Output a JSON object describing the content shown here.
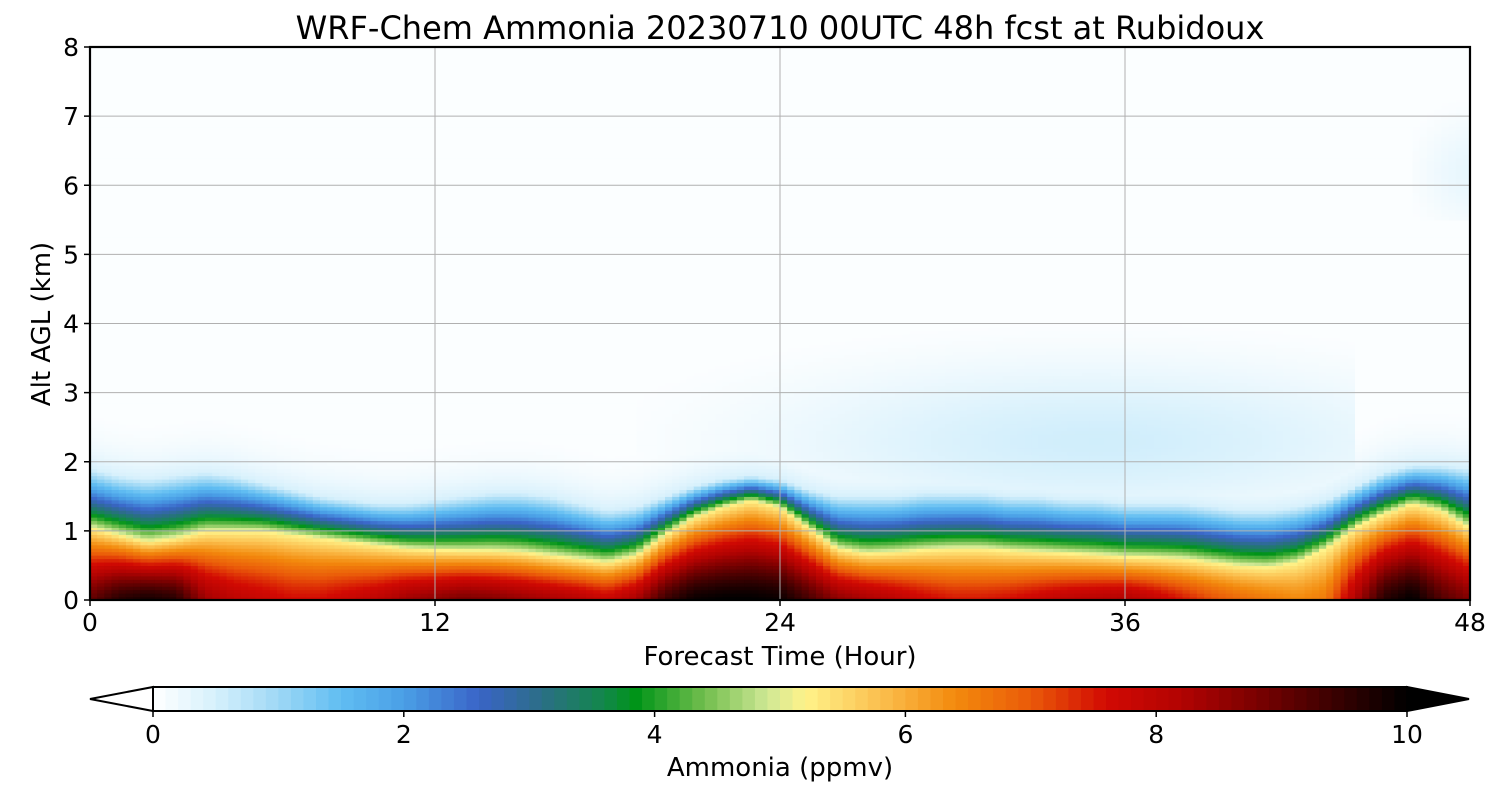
{
  "chart_data": {
    "type": "heatmap",
    "title": "WRF-Chem Ammonia  20230710 00UTC 48h fcst at Rubidoux",
    "xlabel": "Forecast Time (Hour)",
    "ylabel": "Alt AGL (km)",
    "xlim": [
      0,
      48
    ],
    "ylim": [
      0,
      8
    ],
    "x_ticks": [
      0,
      12,
      24,
      36,
      48
    ],
    "y_ticks": [
      0,
      1,
      2,
      3,
      4,
      5,
      6,
      7,
      8
    ],
    "grid": true,
    "colorbar": {
      "label": "Ammonia  (ppmv)",
      "range": [
        0,
        10
      ],
      "ticks": [
        0,
        2,
        4,
        6,
        8,
        10
      ],
      "extend": "both",
      "placement": "bottom",
      "colors": [
        {
          "v": 0.0,
          "c": "#ffffff"
        },
        {
          "v": 0.5,
          "c": "#d6f0fc"
        },
        {
          "v": 1.0,
          "c": "#9ed8f5"
        },
        {
          "v": 1.5,
          "c": "#60bdf2"
        },
        {
          "v": 2.0,
          "c": "#4a9fe6"
        },
        {
          "v": 2.6,
          "c": "#3a64c7"
        },
        {
          "v": 3.1,
          "c": "#2b6e86"
        },
        {
          "v": 3.6,
          "c": "#12884a"
        },
        {
          "v": 3.85,
          "c": "#009418"
        },
        {
          "v": 4.4,
          "c": "#72be4e"
        },
        {
          "v": 4.9,
          "c": "#cfe895"
        },
        {
          "v": 5.2,
          "c": "#fff38a"
        },
        {
          "v": 5.8,
          "c": "#fbbf4e"
        },
        {
          "v": 6.4,
          "c": "#f38a0d"
        },
        {
          "v": 7.0,
          "c": "#ea5a09"
        },
        {
          "v": 7.6,
          "c": "#d20a03"
        },
        {
          "v": 8.2,
          "c": "#b20302"
        },
        {
          "v": 8.8,
          "c": "#7a0101"
        },
        {
          "v": 9.4,
          "c": "#3c0101"
        },
        {
          "v": 10.0,
          "c": "#000000"
        }
      ]
    },
    "x_hours": [
      0,
      1,
      2,
      3,
      4,
      5,
      6,
      7,
      8,
      9,
      10,
      11,
      12,
      13,
      14,
      15,
      16,
      17,
      18,
      19,
      20,
      21,
      22,
      23,
      24,
      25,
      26,
      27,
      28,
      29,
      30,
      31,
      32,
      33,
      34,
      35,
      36,
      37,
      38,
      39,
      40,
      41,
      42,
      43,
      44,
      45,
      46,
      47,
      48
    ],
    "surface_value_ppmv": [
      9.0,
      9.6,
      9.8,
      9.6,
      8.4,
      8.0,
      7.8,
      7.6,
      7.6,
      7.8,
      8.0,
      8.4,
      8.6,
      8.8,
      8.7,
      8.5,
      8.3,
      8.1,
      7.8,
      8.3,
      9.4,
      9.9,
      10.0,
      10.0,
      9.9,
      9.3,
      8.6,
      8.3,
      8.0,
      7.7,
      7.5,
      7.5,
      7.6,
      7.8,
      8.0,
      8.1,
      8.2,
      7.9,
      7.5,
      7.1,
      6.8,
      6.6,
      6.4,
      6.6,
      8.2,
      9.6,
      10.0,
      9.2,
      8.7
    ],
    "yellow_layer_top_km": [
      1.05,
      0.95,
      0.85,
      0.9,
      1.0,
      1.0,
      1.0,
      0.95,
      0.9,
      0.85,
      0.8,
      0.75,
      0.73,
      0.72,
      0.72,
      0.7,
      0.65,
      0.6,
      0.55,
      0.65,
      0.95,
      1.2,
      1.35,
      1.45,
      1.35,
      1.05,
      0.75,
      0.68,
      0.7,
      0.73,
      0.75,
      0.75,
      0.72,
      0.7,
      0.68,
      0.66,
      0.63,
      0.62,
      0.6,
      0.55,
      0.5,
      0.48,
      0.55,
      0.75,
      1.05,
      1.25,
      1.4,
      1.3,
      1.05
    ],
    "plume_top_km": [
      1.9,
      1.8,
      1.75,
      1.8,
      1.85,
      1.8,
      1.7,
      1.6,
      1.5,
      1.45,
      1.4,
      1.4,
      1.45,
      1.5,
      1.55,
      1.55,
      1.5,
      1.4,
      1.3,
      1.35,
      1.5,
      1.65,
      1.75,
      1.8,
      1.75,
      1.6,
      1.5,
      1.5,
      1.5,
      1.55,
      1.55,
      1.55,
      1.5,
      1.5,
      1.45,
      1.45,
      1.4,
      1.4,
      1.4,
      1.35,
      1.3,
      1.3,
      1.35,
      1.45,
      1.65,
      1.85,
      1.95,
      1.95,
      1.9
    ],
    "aloft_blob": {
      "center_hour": 35.0,
      "center_alt_km": 2.3,
      "peak_ppmv": 0.55
    }
  }
}
